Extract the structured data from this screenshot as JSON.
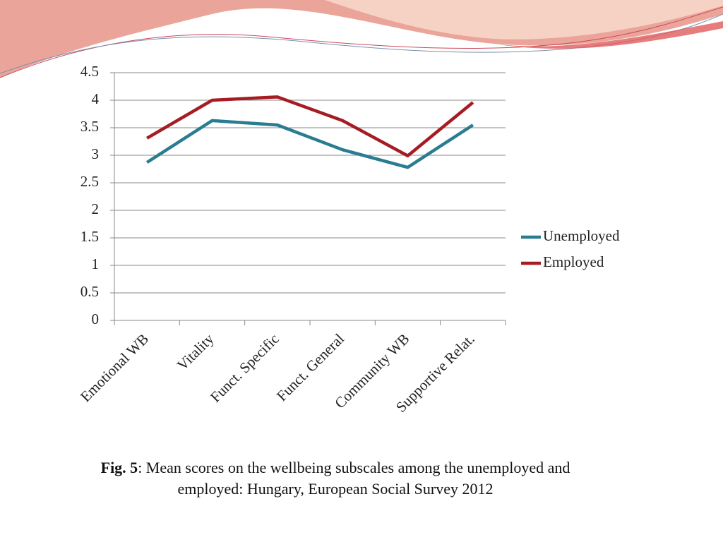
{
  "chart_data": {
    "type": "line",
    "categories": [
      "Emotional WB",
      "Vitality",
      "Funct. Specific",
      "Funct. General",
      "Community WB",
      "Supportive Relat."
    ],
    "series": [
      {
        "name": "Unemployed",
        "color": "#2a7d91",
        "values": [
          2.87,
          3.63,
          3.55,
          3.1,
          2.78,
          3.55
        ]
      },
      {
        "name": "Employed",
        "color": "#a51c24",
        "values": [
          3.31,
          4.0,
          4.06,
          3.63,
          2.99,
          3.96
        ]
      }
    ],
    "ylim": [
      0,
      4.5
    ],
    "yticks": [
      0,
      0.5,
      1,
      1.5,
      2,
      2.5,
      3,
      3.5,
      4,
      4.5
    ],
    "grid": true,
    "legend": "right",
    "caption_label": "Fig. 5",
    "caption_text": ": Mean scores on the wellbeing subscales among the unemployed and employed: Hungary, European Social Survey 2012"
  }
}
